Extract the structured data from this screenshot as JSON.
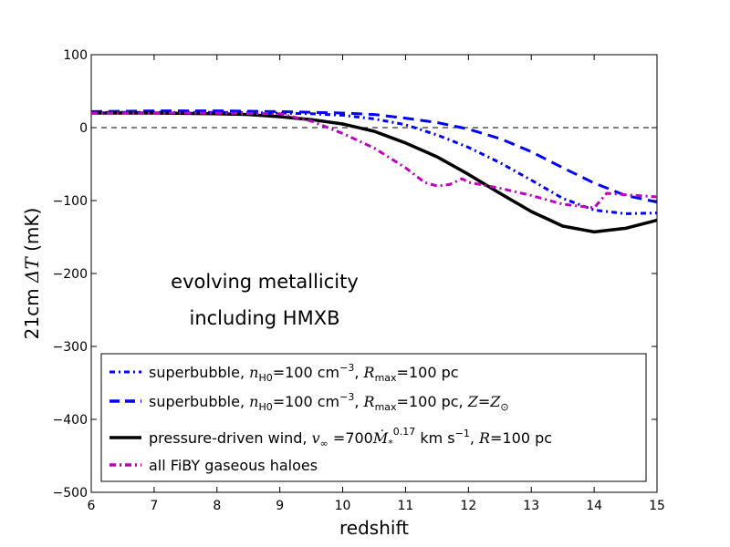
{
  "chart_data": {
    "type": "line",
    "title": "",
    "xlabel": "redshift",
    "ylabel_prefix": "21cm ",
    "ylabel_math": "ΔT",
    "ylabel_suffix": " (mK)",
    "xlim": [
      6,
      15
    ],
    "ylim": [
      -500,
      100
    ],
    "xticks": [
      6,
      7,
      8,
      9,
      10,
      11,
      12,
      13,
      14,
      15
    ],
    "yticks": [
      100,
      0,
      -100,
      -200,
      -300,
      -400,
      -500
    ],
    "xtick_labels": [
      "6",
      "7",
      "8",
      "9",
      "10",
      "11",
      "12",
      "13",
      "14",
      "15"
    ],
    "ytick_labels": [
      "100",
      "0",
      "−100",
      "−200",
      "−300",
      "−400",
      "−500"
    ],
    "reference_line": {
      "y": 0,
      "style": "dashed",
      "color": "#000000"
    },
    "annotation": [
      "evolving metallicity",
      "including HMXB"
    ],
    "series": [
      {
        "name": "superbubble, nH0=100 cm−3, Rmax=100 pc",
        "color": "#0000ff",
        "style": "dashdot",
        "x": [
          6,
          7,
          8,
          9,
          9.5,
          10,
          10.5,
          11,
          11.5,
          12,
          12.5,
          13,
          13.5,
          14,
          14.5,
          15
        ],
        "y": [
          21,
          21,
          21,
          20,
          19,
          17,
          12,
          4,
          -10,
          -27,
          -48,
          -72,
          -97,
          -113,
          -118,
          -117
        ]
      },
      {
        "name": "superbubble, nH0=100 cm−3, Rmax=100 pc, Z=Z⊙",
        "color": "#0000ff",
        "style": "dashed",
        "x": [
          6,
          7,
          8,
          9,
          9.5,
          10,
          10.5,
          11,
          11.5,
          12,
          12.5,
          13,
          13.5,
          14,
          14.5,
          15
        ],
        "y": [
          22,
          23,
          23,
          22,
          21,
          20,
          18,
          13,
          7,
          -2,
          -15,
          -33,
          -55,
          -76,
          -93,
          -102
        ]
      },
      {
        "name": "pressure-driven wind, v∞=700 Ṁ*^0.17 km s−1, R=100 pc",
        "color": "#000000",
        "style": "solid",
        "x": [
          6,
          7,
          8,
          8.5,
          9,
          9.5,
          10,
          10.5,
          11,
          11.5,
          12,
          12.5,
          13,
          13.5,
          14,
          14.5,
          15
        ],
        "y": [
          20,
          20,
          19,
          18,
          15,
          11,
          5,
          -5,
          -21,
          -40,
          -64,
          -90,
          -115,
          -135,
          -143,
          -138,
          -127
        ]
      },
      {
        "name": "all FiBY gaseous haloes",
        "color": "#bf00bf",
        "style": "dashdot",
        "x": [
          6,
          7,
          8,
          9,
          9.5,
          10,
          10.5,
          11,
          11.3,
          11.5,
          11.7,
          11.9,
          12,
          12.5,
          13,
          13.5,
          14,
          14.2,
          14.5,
          15
        ],
        "y": [
          20,
          20,
          20,
          19,
          9,
          -8,
          -28,
          -55,
          -75,
          -80,
          -78,
          -70,
          -75,
          -83,
          -93,
          -105,
          -110,
          -90,
          -92,
          -95
        ]
      }
    ],
    "legend": {
      "placement": "lower-center",
      "entries": [
        {
          "text": "superbubble, ",
          "math": "n",
          "sub": "H0",
          "rest": "=100 cm",
          "sup": "−3",
          "tail": ", ",
          "math2": "R",
          "sub2": "max",
          "rest2": "=100 pc"
        },
        {
          "text": "superbubble, ",
          "math": "n",
          "sub": "H0",
          "rest": "=100 cm",
          "sup": "−3",
          "tail": ", ",
          "math2": "R",
          "sub2": "max",
          "rest2": "=100 pc, ",
          "math3": "Z",
          "rest3": "=",
          "math4": "Z",
          "sub4": "⊙"
        },
        {
          "text": "pressure-driven wind, ",
          "math": "v",
          "sub": "∞",
          "rest": " =700",
          "math2": "Ṁ",
          "sub2": "*",
          "sup2": "0.17",
          "rest2": " km s",
          "sup3": "−1",
          "tail": ", ",
          "math3": "R",
          "rest3": "=100 pc"
        },
        {
          "text": "all FiBY gaseous haloes"
        }
      ]
    }
  }
}
